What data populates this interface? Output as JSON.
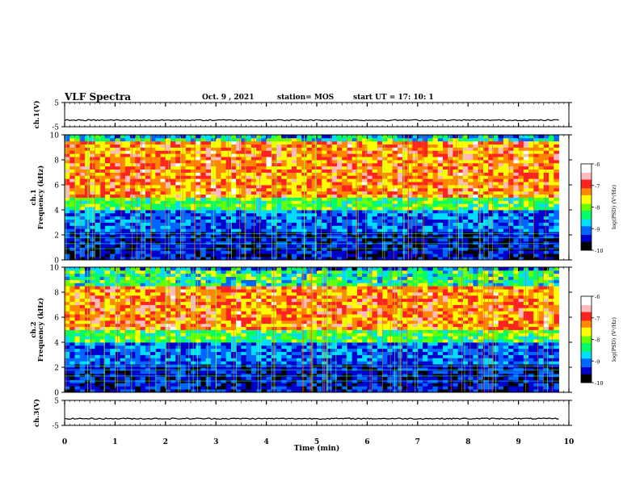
{
  "header": {
    "title": "VLF Spectra",
    "date": "Oct. 9 , 2021",
    "station": "station= MOS",
    "start": "start  UT =   17: 10: 1"
  },
  "chart_data": [
    {
      "type": "line",
      "name": "ch.1 waveform",
      "ylabel": "ch.1(V)",
      "ylim": [
        -5,
        5
      ],
      "yticks": [
        "5",
        "-5"
      ],
      "xlim": [
        0,
        10
      ]
    },
    {
      "type": "heatmap",
      "name": "ch.1 spectrogram",
      "ylabel": "ch.1\nFrequency (kHz)",
      "ylim": [
        0,
        10
      ],
      "yticks": [
        "0",
        "2",
        "4",
        "6",
        "8",
        "10"
      ],
      "xlim": [
        0,
        10
      ],
      "data_end_min": 9.8,
      "colorbar": {
        "label": "log(PSD) (V²/Hz)",
        "range": [
          -10,
          -6
        ],
        "ticks": [
          "-6",
          "-7",
          "-8",
          "-9",
          "-10"
        ]
      },
      "intense_band_khz": [
        5,
        9.5
      ]
    },
    {
      "type": "heatmap",
      "name": "ch.2 spectrogram",
      "ylabel": "ch.2\nFrequency (kHz)",
      "ylim": [
        0,
        10
      ],
      "yticks": [
        "0",
        "2",
        "4",
        "6",
        "8",
        "10"
      ],
      "xlim": [
        0,
        10
      ],
      "data_end_min": 9.8,
      "colorbar": {
        "label": "log(PSD) (V²/Hz)",
        "range": [
          -10,
          -6
        ],
        "ticks": [
          "-6",
          "-7",
          "-8",
          "-9",
          "-10"
        ]
      },
      "intense_band_khz": [
        5,
        8.5
      ]
    },
    {
      "type": "line",
      "name": "ch.3 waveform",
      "ylabel": "ch.3(V)",
      "ylim": [
        -5,
        5
      ],
      "yticks": [
        "5",
        "-5"
      ],
      "xlim": [
        0,
        10
      ],
      "xlabel": "Time (min)",
      "xticks": [
        "0",
        "1",
        "2",
        "3",
        "4",
        "5",
        "6",
        "7",
        "8",
        "9",
        "10"
      ]
    }
  ],
  "colors": {
    "scale": [
      "#000000",
      "#0000cc",
      "#0066ff",
      "#00ddff",
      "#00ff66",
      "#66ff00",
      "#ffff00",
      "#ff8800",
      "#ff2222",
      "#ffbbbb",
      "#ffffff"
    ],
    "axis": "#000000",
    "waveform": "#000000"
  }
}
